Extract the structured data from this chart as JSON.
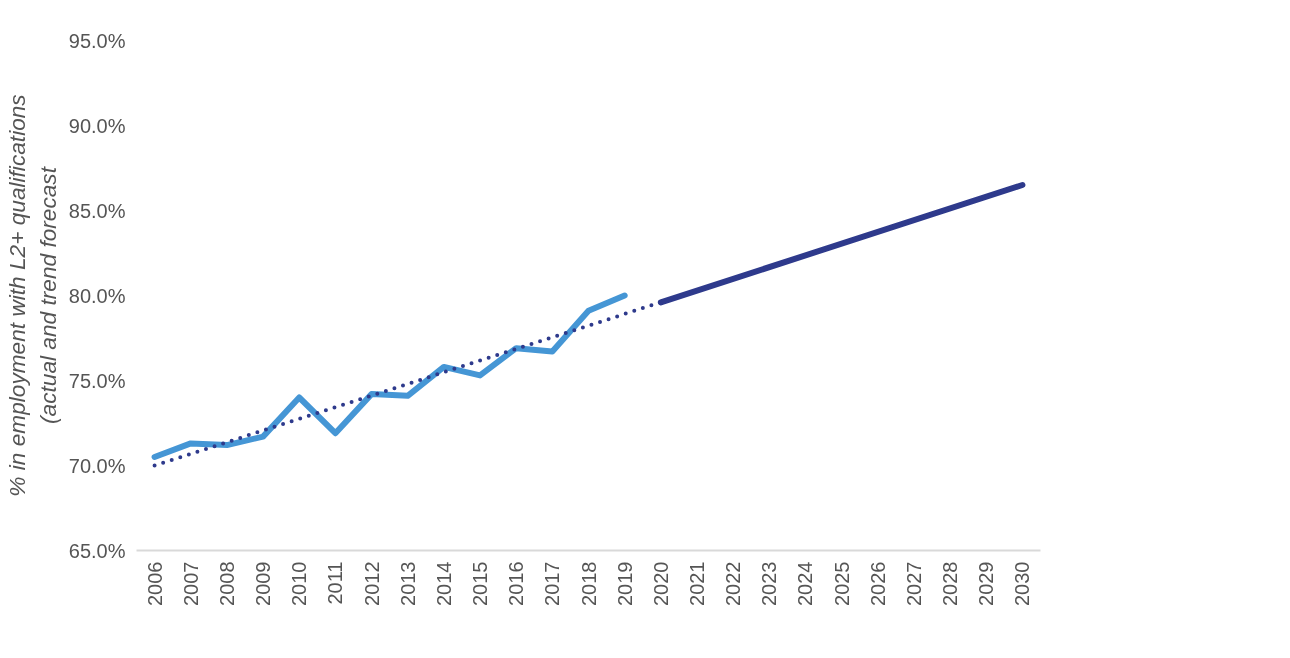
{
  "chart_data": {
    "type": "line",
    "ylabel": "% in employment with L2+ qualifications\n(actual and trend forecast",
    "categories": [
      "2006",
      "2007",
      "2008",
      "2009",
      "2010",
      "2011",
      "2012",
      "2013",
      "2014",
      "2015",
      "2016",
      "2017",
      "2018",
      "2019",
      "2020",
      "2021",
      "2022",
      "2023",
      "2024",
      "2025",
      "2026",
      "2027",
      "2028",
      "2029",
      "2030"
    ],
    "series": [
      {
        "color": "#4596d5",
        "line_style": "solid",
        "values": [
          70.5,
          71.3,
          71.2,
          71.7,
          74.0,
          71.9,
          74.2,
          74.1,
          75.8,
          75.3,
          76.9,
          76.7,
          79.1,
          80.0,
          null,
          null,
          null,
          null,
          null,
          null,
          null,
          null,
          null,
          null,
          null
        ]
      },
      {
        "color": "#2e3a8c",
        "line_style": "dotted",
        "values": [
          70.0,
          null,
          null,
          null,
          null,
          null,
          null,
          null,
          null,
          null,
          null,
          null,
          null,
          null,
          79.6,
          null,
          null,
          null,
          null,
          null,
          null,
          null,
          null,
          null,
          null
        ]
      },
      {
        "color": "#2e3a8c",
        "line_style": "solid",
        "values": [
          null,
          null,
          null,
          null,
          null,
          null,
          null,
          null,
          null,
          null,
          null,
          null,
          null,
          null,
          79.6,
          null,
          null,
          null,
          null,
          null,
          null,
          null,
          null,
          null,
          86.5
        ]
      }
    ],
    "ylim": [
      65,
      95
    ],
    "yticks": [
      {
        "value": 65,
        "label": "65.0%"
      },
      {
        "value": 70,
        "label": "70.0%"
      },
      {
        "value": 75,
        "label": "75.0%"
      },
      {
        "value": 80,
        "label": "80.0%"
      },
      {
        "value": 85,
        "label": "85.0%"
      },
      {
        "value": 90,
        "label": "90.0%"
      },
      {
        "value": 95,
        "label": "95.0%"
      }
    ],
    "grid": false,
    "marker": "none"
  }
}
